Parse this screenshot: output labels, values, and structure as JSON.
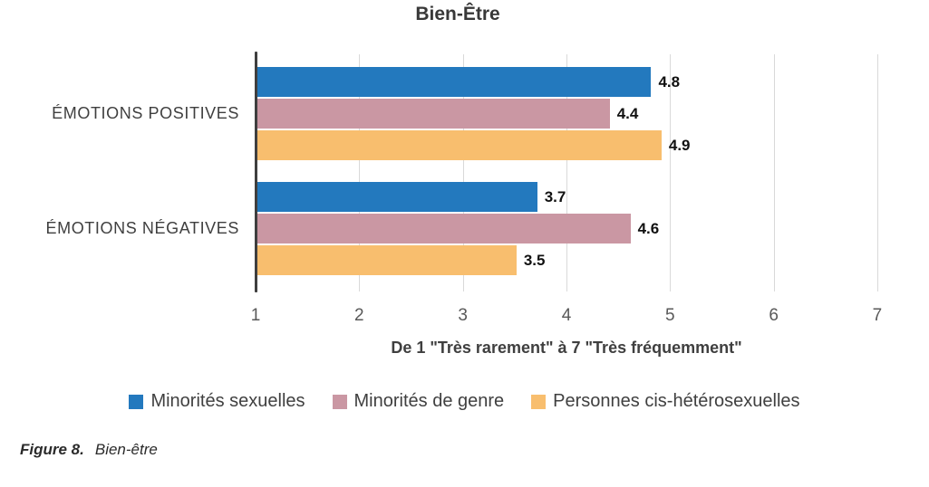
{
  "chart_data": {
    "type": "bar",
    "orientation": "horizontal",
    "title": "Bien-Être",
    "categories": [
      "ÉMOTIONS POSITIVES",
      "ÉMOTIONS NÉGATIVES"
    ],
    "series": [
      {
        "name": "Minorités sexuelles",
        "color": "#2379BE",
        "values": [
          4.8,
          3.7
        ]
      },
      {
        "name": "Minorités de genre",
        "color": "#CA97A3",
        "values": [
          4.4,
          4.6
        ]
      },
      {
        "name": "Personnes cis-hétérosexuelles",
        "color": "#F8BE6E",
        "values": [
          4.9,
          3.5
        ]
      }
    ],
    "xlabel": "De 1 \"Très rarement\" à 7 \"Très fréquemment\"",
    "x_ticks": [
      1,
      2,
      3,
      4,
      5,
      6,
      7
    ],
    "xlim": [
      1,
      7
    ],
    "grid": true,
    "data_labels": true,
    "legend_position": "bottom"
  },
  "caption": {
    "prefix": "Figure 8.",
    "text": "Bien-être"
  },
  "style_colors": {
    "axis": "#3F3F3F",
    "gridline": "#D9D9D9",
    "tick_text": "#595959",
    "value_text": "#111111"
  }
}
